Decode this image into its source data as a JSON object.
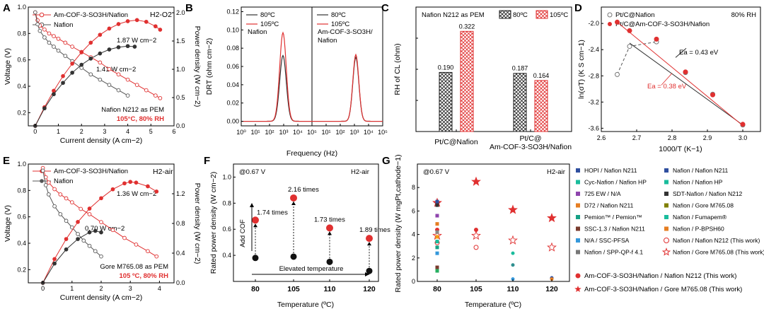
{
  "chart_data": [
    {
      "panel": "A",
      "type": "line",
      "title": "H2-O2",
      "xlabel": "Current density (A cm−2)",
      "ylabel": "Voltage (V)",
      "ylabel2": "Power density (W cm−2)",
      "xlim": [
        -0.3,
        6
      ],
      "ylim": [
        0.1,
        1.0
      ],
      "ylim2": [
        0,
        2.1
      ],
      "xticks": [
        "0",
        "1",
        "2",
        "3",
        "4",
        "5",
        "6"
      ],
      "yticks": [
        "0.2",
        "0.4",
        "0.6",
        "0.8",
        "1.0"
      ],
      "y2ticks": [
        "0.0",
        "0.5",
        "1.0",
        "1.5",
        "2.0"
      ],
      "legend": [
        "Am-COF-3-SO3H/Nafion",
        "Nafion"
      ],
      "annotations": [
        "1.87 W cm−2",
        "1.41 W cm−2"
      ],
      "note1": "Nafion N212 as PEM",
      "note2": "105°C, 80% RH",
      "series": [
        {
          "name": "Am-COF-3-SO3H/Nafion V",
          "x": [
            0,
            0.1,
            0.2,
            0.4,
            0.6,
            0.8,
            1.0,
            1.3,
            1.6,
            2.0,
            2.4,
            2.8,
            3.2,
            3.6,
            4.0,
            4.4,
            4.8,
            5.2,
            5.4
          ],
          "y": [
            0.96,
            0.9,
            0.86,
            0.83,
            0.8,
            0.78,
            0.76,
            0.73,
            0.7,
            0.66,
            0.62,
            0.58,
            0.53,
            0.49,
            0.45,
            0.41,
            0.37,
            0.33,
            0.31
          ]
        },
        {
          "name": "Nafion V",
          "x": [
            0,
            0.1,
            0.2,
            0.4,
            0.6,
            0.8,
            1.0,
            1.3,
            1.6,
            2.0,
            2.4,
            2.8,
            3.2,
            3.6,
            4.0
          ],
          "y": [
            0.96,
            0.87,
            0.82,
            0.77,
            0.73,
            0.7,
            0.67,
            0.63,
            0.59,
            0.54,
            0.49,
            0.45,
            0.41,
            0.37,
            0.33
          ]
        },
        {
          "name": "Am-COF-3-SO3H/Nafion P",
          "x": [
            0,
            0.4,
            0.8,
            1.2,
            1.6,
            2.0,
            2.4,
            2.8,
            3.2,
            3.6,
            4.0,
            4.4,
            4.8,
            5.2,
            5.4
          ],
          "y": [
            0,
            0.33,
            0.62,
            0.88,
            1.1,
            1.3,
            1.47,
            1.61,
            1.72,
            1.8,
            1.85,
            1.87,
            1.84,
            1.76,
            1.7
          ]
        },
        {
          "name": "Nafion P",
          "x": [
            0,
            0.4,
            0.8,
            1.2,
            1.6,
            2.0,
            2.4,
            2.8,
            3.2,
            3.6,
            4.0,
            4.3
          ],
          "y": [
            0,
            0.31,
            0.56,
            0.76,
            0.94,
            1.08,
            1.19,
            1.28,
            1.35,
            1.39,
            1.41,
            1.4
          ]
        }
      ]
    },
    {
      "panel": "B",
      "type": "line",
      "xlabel": "Frequency (Hz)",
      "ylabel": "DRT (ohm cm−2)",
      "xlim_log": [
        0,
        5
      ],
      "ylim": [
        -0.005,
        0.125
      ],
      "xticks": [
        "10⁰",
        "10¹",
        "10²",
        "10³",
        "10⁴",
        "10⁵"
      ],
      "yticks": [
        "0.00",
        "0.02",
        "0.04",
        "0.06",
        "0.08",
        "0.10",
        "0.12"
      ],
      "subpanels": [
        {
          "label": "Nafion",
          "legend": [
            "80ºC",
            "105ºC"
          ],
          "series": [
            {
              "name": "80ºC",
              "peak_log": 2.95,
              "height": 0.072,
              "width": 0.33
            },
            {
              "name": "105ºC",
              "peak_log": 2.95,
              "height": 0.097,
              "width": 0.33
            }
          ]
        },
        {
          "label_line1": "Am-COF-3-SO3H/",
          "label_line2": "Nafion",
          "legend": [
            "80ºC",
            "105ºC"
          ],
          "series": [
            {
              "name": "80ºC",
              "peak_log": 3.1,
              "height": 0.07,
              "width": 0.3
            },
            {
              "name": "105ºC",
              "peak_log": 3.1,
              "height": 0.073,
              "width": 0.3
            }
          ]
        }
      ]
    },
    {
      "panel": "C",
      "type": "bar",
      "title": "Nafion N212 as PEM",
      "ylabel": "RH of CL (ohm)",
      "categories": [
        "Pt/C@Nafion",
        "Pt/C@ Am-COF-3-SO3H/Nafion"
      ],
      "cat_line2": [
        "",
        "Am-COF-3-SO3H/Nafion"
      ],
      "cat_line1": [
        "Pt/C@Nafion",
        "Pt/C@"
      ],
      "series": [
        {
          "name": "80ºC",
          "values": [
            0.19,
            0.187
          ]
        },
        {
          "name": "105ºC",
          "values": [
            0.322,
            0.164
          ]
        }
      ],
      "labels": [
        [
          "0.190",
          "0.187"
        ],
        [
          "0.322",
          "0.164"
        ]
      ],
      "ylim": [
        0,
        0.4
      ]
    },
    {
      "panel": "D",
      "type": "scatter",
      "title": "80% RH",
      "xlabel": "1000/T (K−1)",
      "ylabel": "ln(σT) (K S cm−1)",
      "xlim": [
        2.6,
        3.05
      ],
      "ylim": [
        -3.65,
        -1.75
      ],
      "xticks": [
        "2.6",
        "2.7",
        "2.8",
        "2.9",
        "3.0"
      ],
      "yticks": [
        "-2.0",
        "-2.4",
        "-2.8",
        "-3.2",
        "-3.6"
      ],
      "legend": [
        "Pt/C@Nafion",
        "Pt/C@Am-COF-3-SO3H/Nafion"
      ],
      "annotations": [
        "Ea = 0.43 eV",
        "Ea = 0.38 eV"
      ],
      "series": [
        {
          "name": "Pt/C@Nafion",
          "x": [
            2.645,
            2.68,
            2.756,
            2.838,
            2.915,
            3.0
          ],
          "y": [
            -2.78,
            -2.35,
            -2.28,
            -2.75,
            -3.08,
            -3.55
          ]
        },
        {
          "name": "Pt/C@Am-COF-3-SO3H/Nafion",
          "x": [
            2.645,
            2.68,
            2.756,
            2.838,
            2.915,
            3.0
          ],
          "y": [
            -1.98,
            -2.11,
            -2.24,
            -2.74,
            -3.09,
            -3.54
          ]
        }
      ]
    },
    {
      "panel": "E",
      "type": "line",
      "title": "H2-air",
      "xlabel": "Current density (A cm−2)",
      "ylabel": "Voltage (V)",
      "ylabel2": "Power density (W cm−2)",
      "xlim": [
        -0.5,
        4.5
      ],
      "ylim": [
        0.1,
        1.0
      ],
      "ylim2": [
        0,
        1.6
      ],
      "xticks": [
        "0",
        "1",
        "2",
        "3",
        "4"
      ],
      "yticks": [
        "0.2",
        "0.4",
        "0.6",
        "0.8",
        "1.0"
      ],
      "y2ticks": [
        "0.0",
        "0.4",
        "0.8",
        "1.2"
      ],
      "legend": [
        "Am-COF-3-SO3H/Nafion",
        "Nafion"
      ],
      "annotations": [
        "1.36 W cm−2",
        "0.70 W cm−2"
      ],
      "note1": "Gore M765.08 as PEM",
      "note2": "105 ºC, 80% RH",
      "series": [
        {
          "name": "Am-COF-3-SO3H/Nafion V",
          "x": [
            0,
            0.1,
            0.2,
            0.4,
            0.6,
            0.8,
            1.0,
            1.3,
            1.6,
            2.0,
            2.4,
            2.8,
            3.2,
            3.6,
            3.9
          ],
          "y": [
            0.97,
            0.9,
            0.86,
            0.81,
            0.77,
            0.74,
            0.71,
            0.66,
            0.62,
            0.56,
            0.5,
            0.44,
            0.39,
            0.34,
            0.3
          ]
        },
        {
          "name": "Nafion V",
          "x": [
            0,
            0.1,
            0.2,
            0.4,
            0.6,
            0.8,
            1.0,
            1.2,
            1.4,
            1.6,
            1.8,
            2.0
          ],
          "y": [
            0.95,
            0.84,
            0.77,
            0.68,
            0.62,
            0.57,
            0.52,
            0.47,
            0.42,
            0.38,
            0.34,
            0.3
          ]
        },
        {
          "name": "Am-COF-3-SO3H/Nafion P",
          "x": [
            0,
            0.4,
            0.8,
            1.2,
            1.6,
            2.0,
            2.4,
            2.8,
            3.0,
            3.2,
            3.6,
            3.9
          ],
          "y": [
            0,
            0.32,
            0.59,
            0.82,
            1.0,
            1.14,
            1.26,
            1.34,
            1.36,
            1.35,
            1.3,
            1.23
          ]
        },
        {
          "name": "Nafion P",
          "x": [
            0,
            0.4,
            0.8,
            1.2,
            1.6,
            1.8,
            2.0
          ],
          "y": [
            0,
            0.26,
            0.45,
            0.59,
            0.68,
            0.7,
            0.68
          ]
        }
      ]
    },
    {
      "panel": "F",
      "type": "scatter",
      "title": "H2-air",
      "note": "@0.67 V",
      "xlabel": "Temperature (ºC)",
      "ylabel": "Rated power density (W cm−2)",
      "ylim": [
        0.2,
        1.1
      ],
      "yticks": [
        "0.4",
        "0.6",
        "0.8",
        "1.0"
      ],
      "categories": [
        "80",
        "105",
        "110",
        "120"
      ],
      "category_colors": [
        "#000000",
        "#e03030",
        "#2aa02a",
        "#1f5fbf"
      ],
      "red_values": [
        0.67,
        0.84,
        0.61,
        0.53
      ],
      "black_values": [
        0.38,
        0.39,
        0.35,
        0.28
      ],
      "annotations": [
        "1.74 times",
        "2.16 times",
        "1.73 times",
        "1.89 times"
      ],
      "add_cof": "Add COF",
      "elevated": "Elevated temperature"
    },
    {
      "panel": "G",
      "type": "scatter",
      "title": "H2-air",
      "note": "@0.67 V",
      "xlabel": "Temperature (ºC)",
      "ylabel": "Rated power density (W mgPt,cathode−1)",
      "ylim": [
        0,
        10
      ],
      "yticks": [
        "0",
        "2",
        "4",
        "6",
        "8"
      ],
      "categories": [
        "80",
        "105",
        "110",
        "120"
      ],
      "category_colors": [
        "#000000",
        "#e03030",
        "#2aa02a",
        "#1f5fbf"
      ],
      "stars": [
        6.7,
        8.5,
        6.1,
        5.4
      ],
      "open_stars": [
        3.9,
        3.9,
        3.5,
        2.9
      ],
      "open_circles": [
        3.3,
        2.9,
        0,
        0
      ],
      "red_circles": [
        4.4,
        4.4,
        0,
        0
      ],
      "legend": [
        "HOPI / Nafion N211",
        "Cyc-Nafion / Nafion HP",
        "725 EW / N/A",
        "D72 / Nafion N211",
        "Pemion™ / Pemion™",
        "SSC-1.3 / Nafion N211",
        "N/A / SSC-PFSA",
        "Nafion / SPP-QP-f 4.1",
        "Am-COF-3-SO3H/Nafion / Nafion N212 (This work)",
        "Am-COF-3-SO3H/Nafion / Gore M765.08 (This work)",
        "Nafion / Nafion N211",
        "Nafion / Nafion HP",
        "SDT-Nafion / Nafion N212",
        "Nafion / Gore M765.08",
        "Nafion / Fumapem®",
        "Nafion / P-BPSH60",
        "Nafion / Nafion N212 (This work)",
        "Nafion / Gore M765.08 (This work)"
      ]
    }
  ],
  "panel_letters": [
    "A",
    "B",
    "C",
    "D",
    "E",
    "F",
    "G"
  ]
}
